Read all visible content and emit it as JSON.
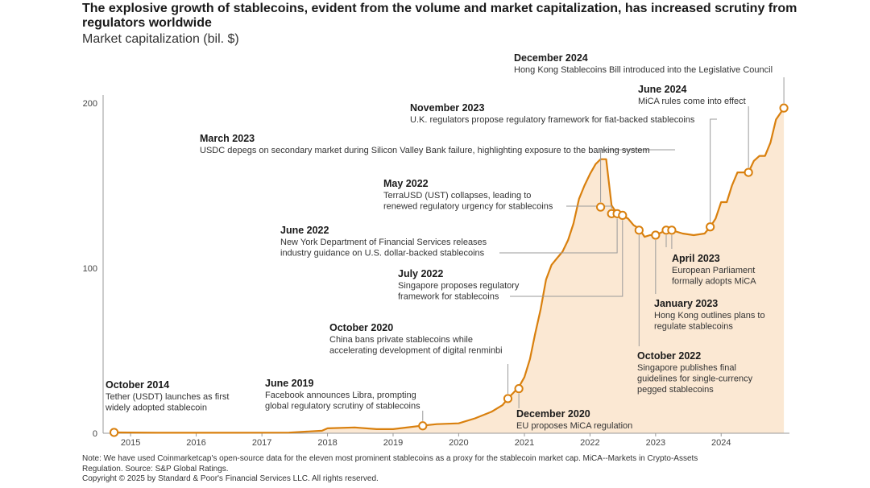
{
  "title": "The explosive growth of stablecoins, evident from the volume and market capitalization, has increased scrutiny from regulators worldwide",
  "subtitle": "Market capitalization (bil. $)",
  "footer": {
    "note_line1": "Note: We have used Coinmarketcap's open-source data for the eleven most prominent stablecoins as a proxy for the stablecoin market cap. MiCA--Markets in Crypto-Assets",
    "note_line2": "Regulation. Source: S&P Global Ratings.",
    "copyright": "Copyright © 2025 by Standard & Poor's Financial Services LLC. All rights reserved."
  },
  "colors": {
    "line": "#d9800e",
    "area": "#fbe8d3",
    "leader": "#9a9a9a",
    "marker_fill": "#ffffff"
  },
  "chart_data": {
    "type": "area",
    "title": "The explosive growth of stablecoins, evident from the volume and market capitalization, has increased scrutiny from regulators worldwide",
    "ylabel": "Market capitalization (bil. $)",
    "xlim": [
      "2014-08-01",
      "2025-01-15"
    ],
    "ylim": [
      0,
      200
    ],
    "yticks": [
      0,
      100,
      200
    ],
    "xticks": [
      "2015",
      "2016",
      "2017",
      "2018",
      "2019",
      "2020",
      "2021",
      "2022",
      "2023",
      "2024"
    ],
    "grid": false,
    "series": [
      {
        "name": "",
        "points": [
          [
            "2014-10-01",
            0.5
          ],
          [
            "2015-06-01",
            0.3
          ],
          [
            "2016-06-01",
            0.3
          ],
          [
            "2017-06-01",
            0.4
          ],
          [
            "2017-12-01",
            1.5
          ],
          [
            "2018-01-01",
            3
          ],
          [
            "2018-06-01",
            3.5
          ],
          [
            "2018-10-01",
            2.5
          ],
          [
            "2019-01-01",
            2.5
          ],
          [
            "2019-06-01",
            4.5
          ],
          [
            "2019-09-01",
            5.5
          ],
          [
            "2020-01-01",
            6
          ],
          [
            "2020-04-01",
            9
          ],
          [
            "2020-07-01",
            13
          ],
          [
            "2020-09-01",
            17
          ],
          [
            "2020-10-01",
            21
          ],
          [
            "2020-12-01",
            28
          ],
          [
            "2021-01-01",
            34
          ],
          [
            "2021-02-01",
            45
          ],
          [
            "2021-03-01",
            60
          ],
          [
            "2021-04-01",
            75
          ],
          [
            "2021-05-01",
            93
          ],
          [
            "2021-06-01",
            102
          ],
          [
            "2021-07-01",
            106
          ],
          [
            "2021-08-01",
            110
          ],
          [
            "2021-09-01",
            117
          ],
          [
            "2021-10-01",
            127
          ],
          [
            "2021-11-01",
            142
          ],
          [
            "2021-12-01",
            150
          ],
          [
            "2022-01-01",
            157
          ],
          [
            "2022-02-01",
            163
          ],
          [
            "2022-03-01",
            166
          ],
          [
            "2022-04-01",
            166
          ],
          [
            "2022-05-01",
            138
          ],
          [
            "2022-06-01",
            133
          ],
          [
            "2022-07-01",
            132
          ],
          [
            "2022-08-01",
            130
          ],
          [
            "2022-09-01",
            126
          ],
          [
            "2022-10-01",
            124
          ],
          [
            "2022-11-01",
            119
          ],
          [
            "2022-12-01",
            120
          ],
          [
            "2023-01-01",
            120
          ],
          [
            "2023-03-01",
            123
          ],
          [
            "2023-04-01",
            123
          ],
          [
            "2023-06-01",
            121
          ],
          [
            "2023-08-01",
            120
          ],
          [
            "2023-10-01",
            121
          ],
          [
            "2023-11-01",
            125
          ],
          [
            "2023-12-01",
            130
          ],
          [
            "2024-01-01",
            140
          ],
          [
            "2024-02-01",
            140
          ],
          [
            "2024-03-01",
            150
          ],
          [
            "2024-04-01",
            158
          ],
          [
            "2024-05-01",
            158
          ],
          [
            "2024-06-01",
            158
          ],
          [
            "2024-07-01",
            165
          ],
          [
            "2024-08-01",
            168
          ],
          [
            "2024-09-01",
            168
          ],
          [
            "2024-10-01",
            176
          ],
          [
            "2024-11-01",
            190
          ],
          [
            "2024-12-15",
            197
          ]
        ]
      }
    ],
    "annotations": [
      {
        "date": "2014-10-01",
        "value": 0.5,
        "title": "October 2014",
        "lines": [
          "Tether (USDT) launches as first",
          "widely adopted stablecoin"
        ]
      },
      {
        "date": "2019-06-15",
        "value": 4.5,
        "title": "June 2019",
        "lines": [
          "Facebook announces Libra, prompting",
          "global regulatory scrutiny of stablecoins"
        ]
      },
      {
        "date": "2020-10-01",
        "value": 21,
        "title": "October 2020",
        "lines": [
          "China bans private stablecoins while",
          "accelerating development of digital renminbi"
        ]
      },
      {
        "date": "2020-12-01",
        "value": 27,
        "title": "December 2020",
        "lines": [
          "EU proposes MiCA regulation"
        ]
      },
      {
        "date": "2022-03-01",
        "value": 137,
        "title": "March 2023",
        "lines": [
          "USDC depegs on secondary market during Silicon Valley Bank failure, highlighting exposure to the banking system"
        ]
      },
      {
        "date": "2022-05-01",
        "value": 133,
        "title": "May 2022",
        "lines": [
          "TerraUSD (UST) collapses, leading to",
          "renewed regulatory urgency for stablecoins"
        ]
      },
      {
        "date": "2022-06-01",
        "value": 133,
        "title": "June 2022",
        "lines": [
          "New York Department of Financial Services releases",
          "industry guidance on U.S. dollar-backed stablecoins"
        ]
      },
      {
        "date": "2022-07-01",
        "value": 132,
        "title": "July 2022",
        "lines": [
          "Singapore proposes regulatory",
          "framework for stablecoins"
        ]
      },
      {
        "date": "2022-10-01",
        "value": 123,
        "title": "October 2022",
        "lines": [
          "Singapore publishes final",
          "guidelines for single-currency",
          "pegged stablecoins"
        ]
      },
      {
        "date": "2023-01-01",
        "value": 120,
        "title": "January 2023",
        "lines": [
          "Hong Kong outlines plans to",
          "regulate stablecoins"
        ]
      },
      {
        "date": "2023-03-01",
        "value": 123,
        "title": "",
        "lines": []
      },
      {
        "date": "2023-04-01",
        "value": 123,
        "title": "April 2023",
        "lines": [
          "European Parliament",
          "formally adopts MiCA"
        ]
      },
      {
        "date": "2023-11-01",
        "value": 125,
        "title": "November 2023",
        "lines": [
          "U.K. regulators propose regulatory framework for fiat-backed stablecoins"
        ]
      },
      {
        "date": "2024-06-01",
        "value": 158,
        "title": "June 2024",
        "lines": [
          "MiCA rules come into effect"
        ]
      },
      {
        "date": "2024-12-15",
        "value": 197,
        "title": "December 2024",
        "lines": [
          "Hong Kong Stablecoins Bill introduced into the Legislative Council"
        ]
      }
    ]
  }
}
